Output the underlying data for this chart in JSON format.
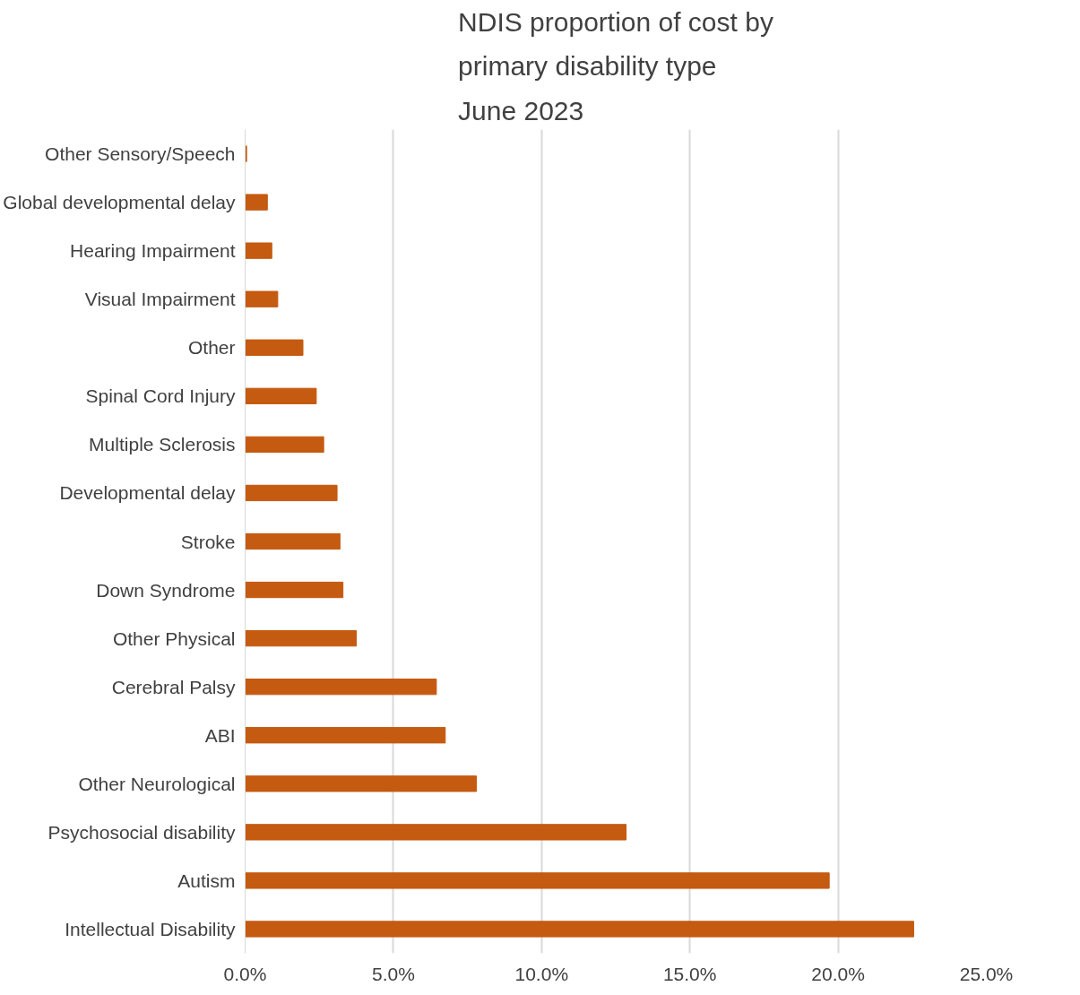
{
  "chart_data": {
    "type": "bar",
    "orientation": "horizontal",
    "title": "NDIS proportion of cost by\nprimary disability type\nJune 2023",
    "categories": [
      "Other Sensory/Speech",
      "Global developmental delay",
      "Hearing Impairment",
      "Visual Impairment",
      "Other",
      "Spinal Cord Injury",
      "Multiple Sclerosis",
      "Developmental delay",
      "Stroke",
      "Down Syndrome",
      "Other Physical",
      "Cerebral Palsy",
      "ABI",
      "Other Neurological",
      "Psychosocial disability",
      "Autism",
      "Intellectual Disability"
    ],
    "values": [
      0.05,
      0.75,
      0.9,
      1.1,
      1.95,
      2.4,
      2.65,
      3.1,
      3.2,
      3.3,
      3.75,
      6.45,
      6.75,
      7.8,
      12.85,
      19.7,
      22.55
    ],
    "color": "#c55a11",
    "xlim": [
      0,
      25
    ],
    "xticks": [
      {
        "value": 0,
        "label": "0.0%"
      },
      {
        "value": 5,
        "label": "5.0%"
      },
      {
        "value": 10,
        "label": "10.0%"
      },
      {
        "value": 15,
        "label": "15.0%"
      },
      {
        "value": 20,
        "label": "20.0%"
      },
      {
        "value": 25,
        "label": "25.0%"
      }
    ],
    "grid": "x"
  }
}
